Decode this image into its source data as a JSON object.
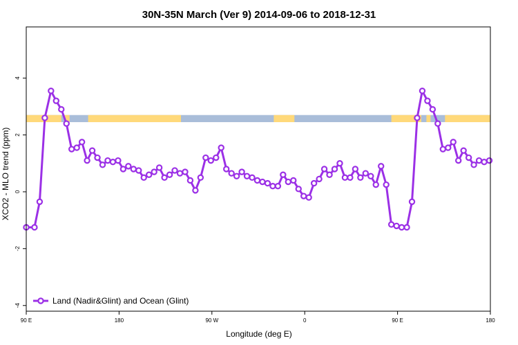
{
  "chart_data": {
    "type": "line",
    "title": "30N-35N March (Ver 9)   2014-09-06 to 2018-12-31",
    "xlabel": "Longitude (deg E)",
    "ylabel": "XCO2 - MLO trend (ppm)",
    "xlim": [
      90,
      540
    ],
    "ylim": [
      -4.2,
      5.8
    ],
    "x_ticks": [
      {
        "value": 90,
        "label": "90 E"
      },
      {
        "value": 180,
        "label": "180"
      },
      {
        "value": 270,
        "label": "90 W"
      },
      {
        "value": 360,
        "label": "0"
      },
      {
        "value": 450,
        "label": "90 E"
      },
      {
        "value": 540,
        "label": "180"
      }
    ],
    "y_ticks": [
      {
        "value": -4,
        "label": "-4"
      },
      {
        "value": -2,
        "label": "-2"
      },
      {
        "value": 0,
        "label": "0"
      },
      {
        "value": 2,
        "label": "2"
      },
      {
        "value": 4,
        "label": "4"
      }
    ],
    "land_ocean_band": {
      "y_range": [
        2.45,
        2.7
      ],
      "land_color": "#FFD97A",
      "ocean_color": "#A9BDD9",
      "land_segments": [
        [
          90,
          124
        ],
        [
          127,
          132
        ],
        [
          150,
          240
        ],
        [
          330,
          350
        ],
        [
          444,
          473
        ],
        [
          478,
          482
        ],
        [
          496,
          540
        ]
      ]
    },
    "series": [
      {
        "name": "Land (Nadir&Glint) and Ocean (Glint)",
        "color": "#9B30E6",
        "x": [
          90,
          98,
          103,
          108,
          114,
          119,
          124,
          129,
          134,
          139,
          144,
          149,
          154,
          159,
          164,
          169,
          174,
          179,
          184,
          189,
          194,
          199,
          204,
          209,
          214,
          219,
          224,
          229,
          234,
          239,
          244,
          249,
          254,
          259,
          264,
          269,
          274,
          279,
          284,
          289,
          294,
          299,
          304,
          309,
          314,
          319,
          324,
          329,
          334,
          339,
          344,
          349,
          354,
          359,
          364,
          369,
          374,
          379,
          384,
          389,
          394,
          399,
          404,
          409,
          414,
          419,
          424,
          429,
          434,
          439,
          444,
          449,
          454,
          459,
          464,
          469,
          474,
          479,
          484,
          489,
          494,
          499,
          504,
          509,
          514,
          519,
          524,
          529,
          534,
          539
        ],
        "y": [
          -1.25,
          -1.25,
          -0.35,
          2.6,
          3.55,
          3.2,
          2.9,
          2.4,
          1.5,
          1.55,
          1.75,
          1.1,
          1.45,
          1.2,
          0.95,
          1.1,
          1.05,
          1.1,
          0.8,
          0.9,
          0.8,
          0.75,
          0.5,
          0.6,
          0.7,
          0.85,
          0.5,
          0.6,
          0.75,
          0.65,
          0.7,
          0.4,
          0.05,
          0.5,
          1.2,
          1.1,
          1.2,
          1.55,
          0.8,
          0.65,
          0.55,
          0.7,
          0.55,
          0.5,
          0.4,
          0.35,
          0.3,
          0.2,
          0.2,
          0.6,
          0.35,
          0.4,
          0.1,
          -0.15,
          -0.2,
          0.3,
          0.45,
          0.8,
          0.6,
          0.8,
          1.0,
          0.5,
          0.5,
          0.8,
          0.5,
          0.65,
          0.55,
          0.25,
          0.9,
          0.25,
          -1.15,
          -1.2,
          -1.25,
          -1.25,
          -0.35,
          2.6,
          3.55,
          3.2,
          2.9,
          2.4,
          1.5,
          1.55,
          1.75,
          1.1,
          1.45,
          1.2,
          0.95,
          1.1,
          1.05,
          1.1
        ]
      }
    ],
    "legend": {
      "position": "bottom-left"
    },
    "grid": false
  }
}
